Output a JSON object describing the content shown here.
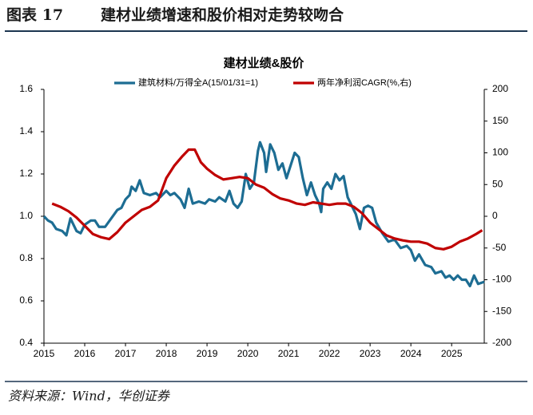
{
  "header": {
    "label": "图表 17",
    "title": "建材业绩增速和股价相对走势较吻合"
  },
  "chart_data": {
    "type": "line",
    "title": "建材业绩&股价",
    "xlim": [
      2015,
      2025.8
    ],
    "xticks": [
      2015,
      2016,
      2017,
      2018,
      2019,
      2020,
      2021,
      2022,
      2023,
      2024,
      2025
    ],
    "ylim": [
      0.4,
      1.6
    ],
    "yticks": [
      0.4,
      0.6,
      0.8,
      {
        "value": 1.0,
        "label": "1.0"
      },
      1.2,
      1.4,
      1.6
    ],
    "y2lim": [
      -200,
      200
    ],
    "y2ticks": [
      -200,
      -150,
      -100,
      -50,
      0,
      50,
      100,
      150,
      200
    ],
    "grid": false,
    "legend": "top",
    "series": [
      {
        "name": "建筑材料/万得全A(15/01/31=1)",
        "color": "#1d6d93",
        "x": [
          2015.0,
          2015.1,
          2015.2,
          2015.3,
          2015.45,
          2015.55,
          2015.65,
          2015.8,
          2015.9,
          2016.0,
          2016.15,
          2016.25,
          2016.35,
          2016.5,
          2016.65,
          2016.8,
          2016.9,
          2017.0,
          2017.1,
          2017.15,
          2017.25,
          2017.35,
          2017.45,
          2017.6,
          2017.75,
          2017.85,
          2018.0,
          2018.1,
          2018.2,
          2018.35,
          2018.45,
          2018.55,
          2018.65,
          2018.8,
          2018.95,
          2019.05,
          2019.2,
          2019.3,
          2019.45,
          2019.55,
          2019.65,
          2019.75,
          2019.85,
          2019.95,
          2020.05,
          2020.15,
          2020.25,
          2020.3,
          2020.4,
          2020.45,
          2020.55,
          2020.65,
          2020.75,
          2020.85,
          2020.95,
          2021.05,
          2021.15,
          2021.25,
          2021.35,
          2021.45,
          2021.55,
          2021.65,
          2021.75,
          2021.8,
          2021.85,
          2021.95,
          2022.05,
          2022.15,
          2022.25,
          2022.35,
          2022.45,
          2022.55,
          2022.65,
          2022.75,
          2022.85,
          2022.95,
          2023.05,
          2023.15,
          2023.3,
          2023.45,
          2023.6,
          2023.75,
          2023.9,
          2024.0,
          2024.1,
          2024.2,
          2024.35,
          2024.5,
          2024.6,
          2024.75,
          2024.85,
          2024.95,
          2025.05,
          2025.15,
          2025.25,
          2025.35,
          2025.45,
          2025.55,
          2025.65,
          2025.8
        ],
        "values": [
          1.0,
          0.98,
          0.97,
          0.94,
          0.93,
          0.91,
          0.99,
          0.93,
          0.92,
          0.96,
          0.98,
          0.98,
          0.95,
          0.95,
          0.99,
          1.03,
          1.04,
          1.08,
          1.1,
          1.14,
          1.12,
          1.17,
          1.11,
          1.1,
          1.11,
          1.09,
          1.12,
          1.1,
          1.11,
          1.08,
          1.04,
          1.13,
          1.06,
          1.07,
          1.06,
          1.08,
          1.07,
          1.09,
          1.07,
          1.12,
          1.06,
          1.04,
          1.07,
          1.2,
          1.13,
          1.16,
          1.31,
          1.35,
          1.3,
          1.21,
          1.34,
          1.3,
          1.22,
          1.25,
          1.18,
          1.24,
          1.3,
          1.28,
          1.18,
          1.1,
          1.16,
          1.1,
          1.06,
          1.02,
          1.13,
          1.16,
          1.13,
          1.2,
          1.17,
          1.19,
          1.09,
          1.05,
          1.01,
          0.94,
          1.04,
          1.05,
          1.04,
          0.97,
          0.92,
          0.88,
          0.89,
          0.85,
          0.86,
          0.84,
          0.79,
          0.82,
          0.77,
          0.76,
          0.73,
          0.74,
          0.71,
          0.72,
          0.7,
          0.72,
          0.7,
          0.7,
          0.67,
          0.72,
          0.68,
          0.69
        ]
      },
      {
        "name": "两年净利润CAGR(%,右)",
        "color": "#c00000",
        "axis": "y2",
        "x": [
          2015.2,
          2015.4,
          2015.6,
          2015.8,
          2016.0,
          2016.2,
          2016.4,
          2016.6,
          2016.8,
          2017.0,
          2017.2,
          2017.4,
          2017.6,
          2017.8,
          2018.0,
          2018.2,
          2018.4,
          2018.55,
          2018.7,
          2018.85,
          2019.0,
          2019.2,
          2019.4,
          2019.6,
          2019.8,
          2020.0,
          2020.2,
          2020.4,
          2020.6,
          2020.8,
          2021.0,
          2021.2,
          2021.4,
          2021.6,
          2021.8,
          2022.0,
          2022.2,
          2022.4,
          2022.6,
          2022.8,
          2023.0,
          2023.2,
          2023.4,
          2023.6,
          2023.8,
          2024.0,
          2024.2,
          2024.4,
          2024.6,
          2024.8,
          2025.0,
          2025.2,
          2025.4,
          2025.6,
          2025.75
        ],
        "values": [
          20,
          15,
          8,
          -2,
          -15,
          -28,
          -33,
          -36,
          -25,
          -10,
          0,
          10,
          15,
          25,
          60,
          80,
          95,
          105,
          105,
          85,
          75,
          65,
          58,
          60,
          62,
          60,
          50,
          45,
          35,
          28,
          25,
          20,
          18,
          22,
          20,
          18,
          20,
          20,
          15,
          5,
          -10,
          -20,
          -30,
          -35,
          -38,
          -40,
          -40,
          -43,
          -50,
          -52,
          -48,
          -40,
          -35,
          -28,
          -22
        ]
      }
    ]
  },
  "source": "资料来源：Wind，华创证券"
}
